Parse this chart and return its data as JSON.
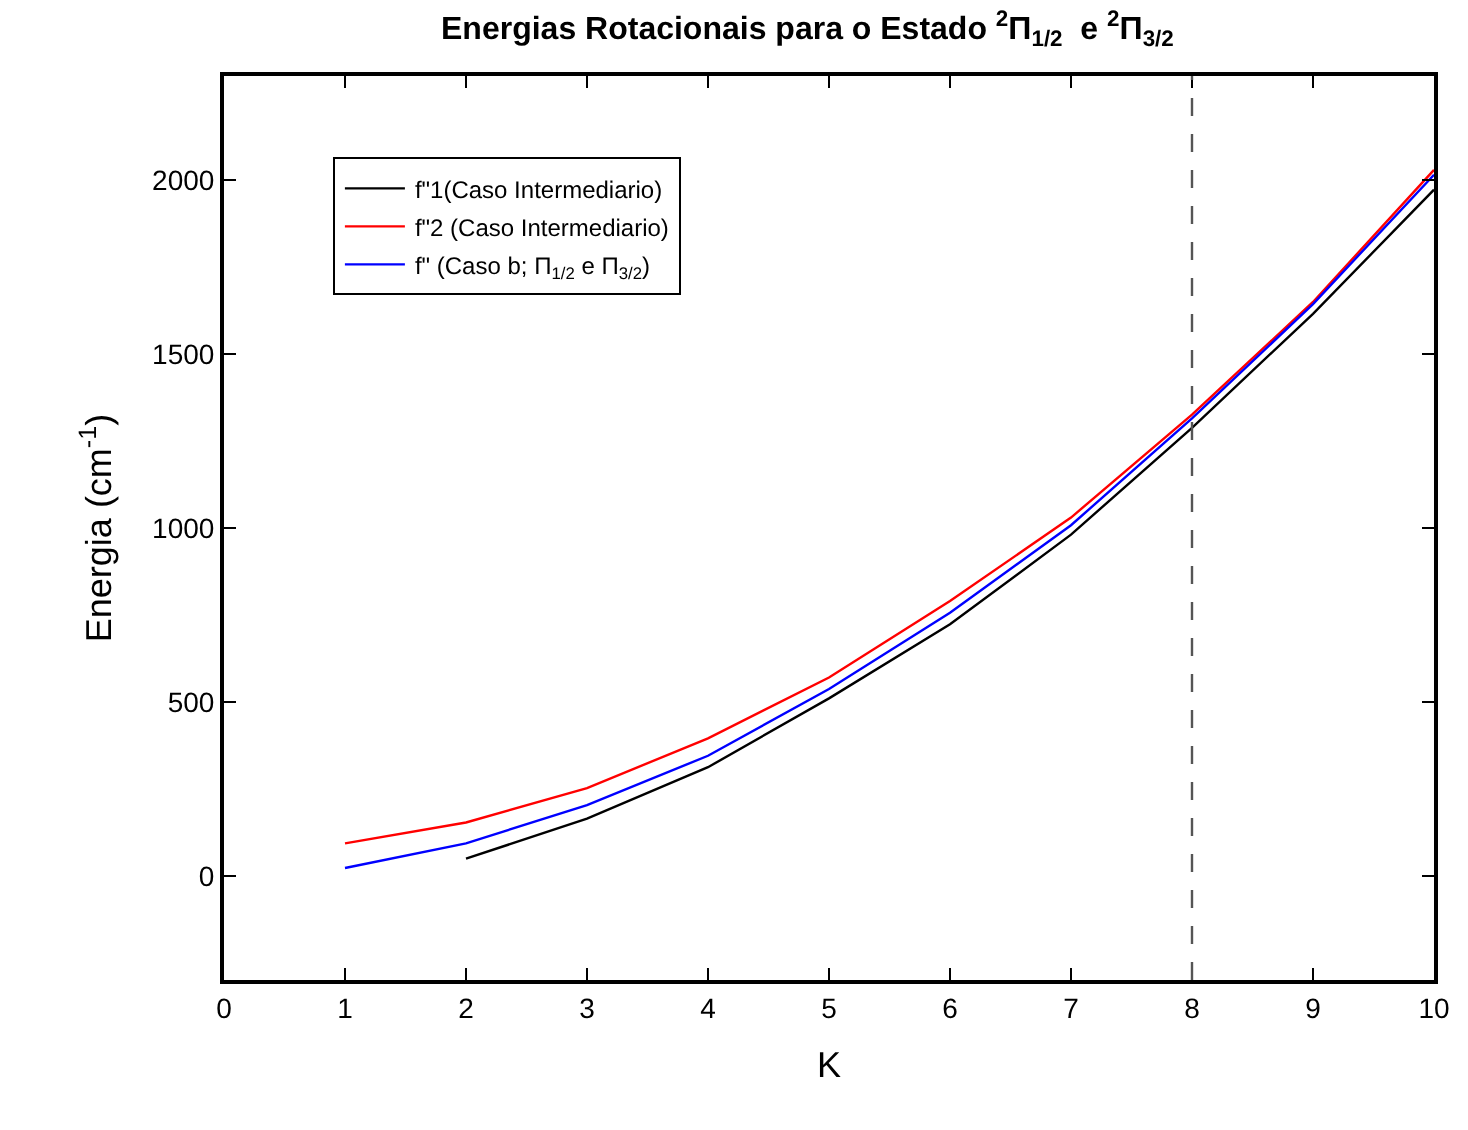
{
  "chart_data": {
    "type": "line",
    "title": "Energias Rotacionais para o Estado $^{2}$Π$_{1/2}$  e $^{2}$Π$_{3/2}$",
    "xlabel": "K",
    "ylabel": "Energia (cm$^{-1}$)",
    "x": [
      1,
      2,
      3,
      4,
      5,
      6,
      7,
      8,
      9,
      10
    ],
    "series": [
      {
        "name": "f\"1(Caso Intermediario)",
        "color": "#000000",
        "values": [
          null,
          49,
          164,
          312,
          510,
          723,
          981,
          1288,
          1616,
          1973
        ]
      },
      {
        "name": "f\"2 (Caso Intermediario)",
        "color": "#ff0000",
        "values": [
          93,
          153,
          252,
          395,
          570,
          790,
          1030,
          1326,
          1650,
          2030
        ]
      },
      {
        "name": "f\" (Caso b; Π$_{1/2}$ e Π$_{3/2}$)",
        "color": "#0000ff",
        "values": [
          22,
          93,
          203,
          345,
          537,
          756,
          1008,
          1315,
          1644,
          2016
        ]
      }
    ],
    "xlim": [
      0,
      10
    ],
    "xticks": [
      0,
      1,
      2,
      3,
      4,
      5,
      6,
      7,
      8,
      9,
      10
    ],
    "ylim": [
      -300,
      2300
    ],
    "yticks": [
      0,
      500,
      1000,
      1500,
      2000
    ],
    "ref_lines": [
      {
        "axis": "x",
        "value": 8,
        "color": "#555555",
        "line_style": "dashed"
      }
    ],
    "legend": "top left",
    "marker": "none",
    "line_style": "solid"
  }
}
